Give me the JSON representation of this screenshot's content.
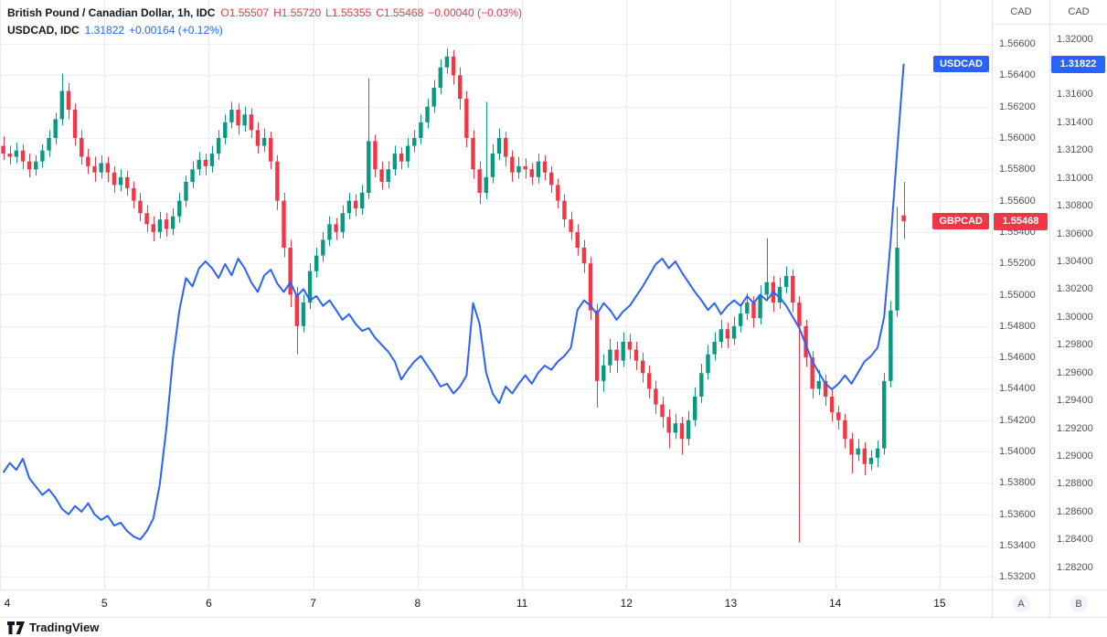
{
  "legend": {
    "line1": {
      "title": "British Pound / Canadian Dollar, 1h, IDC",
      "o": "O1.55507",
      "h": "H1.55720",
      "l": "L1.55355",
      "c": "C1.55468",
      "change": "−0.00040 (−0.03%)"
    },
    "line2": {
      "title": "USDCAD, IDC",
      "value": "1.31822",
      "change": "+0.00164 (+0.12%)"
    }
  },
  "scale_buttons": {
    "a": "A",
    "b": "B"
  },
  "footer": {
    "brand": "TradingView"
  },
  "chart_data": {
    "type": "candlestick+line",
    "timeframe": "1h",
    "x_axis": {
      "slots": 152,
      "labels": [
        [
          "4",
          0
        ],
        [
          "5",
          16
        ],
        [
          "6",
          32
        ],
        [
          "7",
          48
        ],
        [
          "8",
          64
        ],
        [
          "11",
          80
        ],
        [
          "12",
          96
        ],
        [
          "13",
          112
        ],
        [
          "14",
          128
        ],
        [
          "15",
          144
        ]
      ]
    },
    "gbp_axis": {
      "currency": "CAD",
      "min": 1.5312,
      "max": 1.5688,
      "last_price": "1.55468",
      "ticks": [
        "1.56600",
        "1.56400",
        "1.56200",
        "1.56000",
        "1.55800",
        "1.55600",
        "1.55400",
        "1.55200",
        "1.55000",
        "1.54800",
        "1.54600",
        "1.54400",
        "1.54200",
        "1.54000",
        "1.53800",
        "1.53600",
        "1.53400",
        "1.53200"
      ]
    },
    "usd_axis": {
      "currency": "CAD",
      "min": 1.2804,
      "max": 1.3228,
      "last_price": "1.31822",
      "ticks": [
        "1.32000",
        "1.31800",
        "1.31600",
        "1.31400",
        "1.31200",
        "1.31000",
        "1.30800",
        "1.30600",
        "1.30400",
        "1.30200",
        "1.30000",
        "1.29800",
        "1.29600",
        "1.29400",
        "1.29200",
        "1.29000",
        "1.28800",
        "1.28600",
        "1.28400",
        "1.28200"
      ]
    },
    "colors": {
      "up": "#089981",
      "down": "#f23645",
      "line": "#2962ff",
      "gbp_label_bg": "#f23645",
      "usd_label_bg": "#2962ff",
      "grid": "#eef0f4",
      "session_line": "#e7eaef"
    },
    "series": [
      {
        "name": "GBPCAD",
        "type": "candles",
        "candles": [
          [
            1.5595,
            1.5601,
            1.5586,
            1.559
          ],
          [
            1.559,
            1.5595,
            1.5583,
            1.5588
          ],
          [
            1.5588,
            1.5597,
            1.5584,
            1.5592
          ],
          [
            1.5592,
            1.5596,
            1.558,
            1.5585
          ],
          [
            1.5585,
            1.559,
            1.5575,
            1.558
          ],
          [
            1.558,
            1.5589,
            1.5576,
            1.5585
          ],
          [
            1.5585,
            1.5596,
            1.5581,
            1.5592
          ],
          [
            1.5592,
            1.5605,
            1.5588,
            1.56
          ],
          [
            1.56,
            1.5616,
            1.5596,
            1.5612
          ],
          [
            1.5612,
            1.5641,
            1.5608,
            1.563
          ],
          [
            1.563,
            1.5635,
            1.5612,
            1.5618
          ],
          [
            1.5618,
            1.5622,
            1.5595,
            1.56
          ],
          [
            1.56,
            1.5605,
            1.5583,
            1.5588
          ],
          [
            1.5588,
            1.5593,
            1.5577,
            1.5582
          ],
          [
            1.5582,
            1.5588,
            1.5572,
            1.5578
          ],
          [
            1.5578,
            1.5589,
            1.5574,
            1.5584
          ],
          [
            1.5584,
            1.5588,
            1.5572,
            1.5578
          ],
          [
            1.5578,
            1.5582,
            1.5565,
            1.557
          ],
          [
            1.557,
            1.558,
            1.5566,
            1.5575
          ],
          [
            1.5575,
            1.5579,
            1.5563,
            1.5568
          ],
          [
            1.5568,
            1.5572,
            1.5555,
            1.556
          ],
          [
            1.556,
            1.5565,
            1.5547,
            1.5552
          ],
          [
            1.5552,
            1.5557,
            1.554,
            1.5545
          ],
          [
            1.5545,
            1.555,
            1.5534,
            1.554
          ],
          [
            1.554,
            1.5553,
            1.5536,
            1.5548
          ],
          [
            1.5548,
            1.5552,
            1.5537,
            1.5542
          ],
          [
            1.5542,
            1.5555,
            1.5538,
            1.555
          ],
          [
            1.555,
            1.5565,
            1.5546,
            1.556
          ],
          [
            1.556,
            1.5576,
            1.5556,
            1.5572
          ],
          [
            1.5572,
            1.5585,
            1.5568,
            1.558
          ],
          [
            1.558,
            1.5591,
            1.5576,
            1.5586
          ],
          [
            1.5586,
            1.559,
            1.5576,
            1.5582
          ],
          [
            1.5582,
            1.5595,
            1.5578,
            1.559
          ],
          [
            1.559,
            1.5605,
            1.5586,
            1.56
          ],
          [
            1.56,
            1.5615,
            1.5596,
            1.561
          ],
          [
            1.561,
            1.5623,
            1.5606,
            1.5618
          ],
          [
            1.5618,
            1.5622,
            1.5602,
            1.5608
          ],
          [
            1.5608,
            1.562,
            1.5604,
            1.5615
          ],
          [
            1.5615,
            1.5619,
            1.56,
            1.5605
          ],
          [
            1.5605,
            1.561,
            1.559,
            1.5595
          ],
          [
            1.5595,
            1.5606,
            1.5591,
            1.56
          ],
          [
            1.56,
            1.5604,
            1.558,
            1.5585
          ],
          [
            1.5585,
            1.5589,
            1.5554,
            1.556
          ],
          [
            1.556,
            1.5565,
            1.5524,
            1.553
          ],
          [
            1.553,
            1.5535,
            1.5492,
            1.55
          ],
          [
            1.55,
            1.5505,
            1.5462,
            1.548
          ],
          [
            1.548,
            1.55,
            1.5476,
            1.5495
          ],
          [
            1.5495,
            1.552,
            1.5491,
            1.5515
          ],
          [
            1.5515,
            1.553,
            1.5511,
            1.5525
          ],
          [
            1.5525,
            1.554,
            1.5521,
            1.5535
          ],
          [
            1.5535,
            1.555,
            1.5531,
            1.5545
          ],
          [
            1.5545,
            1.5549,
            1.5535,
            1.554
          ],
          [
            1.554,
            1.5557,
            1.5536,
            1.5552
          ],
          [
            1.5552,
            1.5565,
            1.5548,
            1.556
          ],
          [
            1.556,
            1.5564,
            1.555,
            1.5555
          ],
          [
            1.5555,
            1.557,
            1.5551,
            1.5565
          ],
          [
            1.5565,
            1.5638,
            1.5561,
            1.5598
          ],
          [
            1.5598,
            1.5602,
            1.5575,
            1.558
          ],
          [
            1.558,
            1.5585,
            1.5567,
            1.5572
          ],
          [
            1.5572,
            1.5585,
            1.5568,
            1.558
          ],
          [
            1.558,
            1.5595,
            1.5576,
            1.559
          ],
          [
            1.559,
            1.5594,
            1.558,
            1.5585
          ],
          [
            1.5585,
            1.56,
            1.5581,
            1.5595
          ],
          [
            1.5595,
            1.5605,
            1.5591,
            1.56
          ],
          [
            1.56,
            1.5615,
            1.5596,
            1.561
          ],
          [
            1.561,
            1.5625,
            1.5606,
            1.562
          ],
          [
            1.562,
            1.5637,
            1.5616,
            1.5632
          ],
          [
            1.5632,
            1.565,
            1.5628,
            1.5645
          ],
          [
            1.5645,
            1.5657,
            1.5641,
            1.5652
          ],
          [
            1.5652,
            1.5656,
            1.5634,
            1.564
          ],
          [
            1.564,
            1.5645,
            1.5618,
            1.5625
          ],
          [
            1.5625,
            1.563,
            1.5594,
            1.56
          ],
          [
            1.56,
            1.5605,
            1.5574,
            1.558
          ],
          [
            1.558,
            1.5585,
            1.5558,
            1.5565
          ],
          [
            1.5565,
            1.5623,
            1.5561,
            1.5575
          ],
          [
            1.5575,
            1.5596,
            1.5571,
            1.559
          ],
          [
            1.559,
            1.5606,
            1.5586,
            1.56
          ],
          [
            1.56,
            1.5604,
            1.5582,
            1.5588
          ],
          [
            1.5588,
            1.5592,
            1.5572,
            1.5578
          ],
          [
            1.5578,
            1.5588,
            1.5574,
            1.5582
          ],
          [
            1.5582,
            1.5587,
            1.5574,
            1.558
          ],
          [
            1.558,
            1.5584,
            1.557,
            1.5575
          ],
          [
            1.5575,
            1.559,
            1.5571,
            1.5585
          ],
          [
            1.5585,
            1.5589,
            1.5573,
            1.5578
          ],
          [
            1.5578,
            1.5582,
            1.5565,
            1.557
          ],
          [
            1.557,
            1.5574,
            1.5555,
            1.556
          ],
          [
            1.556,
            1.5564,
            1.5543,
            1.5548
          ],
          [
            1.5548,
            1.5553,
            1.5535,
            1.554
          ],
          [
            1.554,
            1.5545,
            1.5525,
            1.553
          ],
          [
            1.553,
            1.5535,
            1.5514,
            1.552
          ],
          [
            1.552,
            1.5524,
            1.5484,
            1.549
          ],
          [
            1.549,
            1.5494,
            1.5428,
            1.5445
          ],
          [
            1.5445,
            1.5462,
            1.5438,
            1.5455
          ],
          [
            1.5455,
            1.5472,
            1.545,
            1.5465
          ],
          [
            1.5465,
            1.547,
            1.545,
            1.5458
          ],
          [
            1.5458,
            1.5476,
            1.5454,
            1.547
          ],
          [
            1.547,
            1.5475,
            1.5459,
            1.5465
          ],
          [
            1.5465,
            1.547,
            1.5452,
            1.5458
          ],
          [
            1.5458,
            1.5463,
            1.5444,
            1.545
          ],
          [
            1.545,
            1.5455,
            1.5434,
            1.544
          ],
          [
            1.544,
            1.5445,
            1.5424,
            1.543
          ],
          [
            1.543,
            1.5435,
            1.5415,
            1.5422
          ],
          [
            1.5422,
            1.5427,
            1.5402,
            1.5412
          ],
          [
            1.5412,
            1.5424,
            1.5408,
            1.5418
          ],
          [
            1.5418,
            1.5422,
            1.5398,
            1.5408
          ],
          [
            1.5408,
            1.5426,
            1.5404,
            1.542
          ],
          [
            1.542,
            1.5441,
            1.5416,
            1.5435
          ],
          [
            1.5435,
            1.5456,
            1.5431,
            1.545
          ],
          [
            1.545,
            1.5468,
            1.5446,
            1.5462
          ],
          [
            1.5462,
            1.5476,
            1.5458,
            1.547
          ],
          [
            1.547,
            1.5484,
            1.5466,
            1.5478
          ],
          [
            1.5478,
            1.5482,
            1.5466,
            1.5472
          ],
          [
            1.5472,
            1.5486,
            1.5468,
            1.548
          ],
          [
            1.548,
            1.5494,
            1.5476,
            1.5488
          ],
          [
            1.5488,
            1.5501,
            1.5484,
            1.5495
          ],
          [
            1.5495,
            1.5499,
            1.5479,
            1.5485
          ],
          [
            1.5485,
            1.5506,
            1.5481,
            1.55
          ],
          [
            1.55,
            1.5536,
            1.5496,
            1.5508
          ],
          [
            1.5508,
            1.5512,
            1.5489,
            1.5495
          ],
          [
            1.5495,
            1.5511,
            1.5491,
            1.5505
          ],
          [
            1.5505,
            1.5518,
            1.5501,
            1.5512
          ],
          [
            1.5512,
            1.5516,
            1.5489,
            1.5495
          ],
          [
            1.5495,
            1.5499,
            1.5342,
            1.548
          ],
          [
            1.548,
            1.5484,
            1.5454,
            1.546
          ],
          [
            1.546,
            1.5464,
            1.5434,
            1.544
          ],
          [
            1.544,
            1.5452,
            1.5436,
            1.5445
          ],
          [
            1.5445,
            1.5449,
            1.5429,
            1.5435
          ],
          [
            1.5435,
            1.544,
            1.5419,
            1.5425
          ],
          [
            1.5425,
            1.5429,
            1.5414,
            1.542
          ],
          [
            1.542,
            1.5424,
            1.5402,
            1.5408
          ],
          [
            1.5408,
            1.5412,
            1.5386,
            1.5398
          ],
          [
            1.5398,
            1.5408,
            1.5394,
            1.5402
          ],
          [
            1.5402,
            1.5406,
            1.5385,
            1.5392
          ],
          [
            1.5392,
            1.5401,
            1.5388,
            1.5396
          ],
          [
            1.5396,
            1.5407,
            1.539,
            1.5402
          ],
          [
            1.5402,
            1.545,
            1.5398,
            1.5445
          ],
          [
            1.5445,
            1.5496,
            1.5441,
            1.549
          ],
          [
            1.549,
            1.5556,
            1.5486,
            1.553
          ],
          [
            1.55507,
            1.5572,
            1.55355,
            1.55468
          ]
        ]
      },
      {
        "name": "USDCAD",
        "type": "line",
        "values": [
          1.2888,
          1.2895,
          1.289,
          1.2898,
          1.2884,
          1.2878,
          1.2872,
          1.2876,
          1.287,
          1.2862,
          1.2858,
          1.2864,
          1.286,
          1.2866,
          1.2858,
          1.2854,
          1.2857,
          1.285,
          1.2852,
          1.2846,
          1.2842,
          1.284,
          1.2846,
          1.2855,
          1.288,
          1.292,
          1.297,
          1.3005,
          1.3028,
          1.3022,
          1.3035,
          1.304,
          1.3035,
          1.3028,
          1.3038,
          1.303,
          1.3042,
          1.3035,
          1.3025,
          1.3018,
          1.303,
          1.3034,
          1.3024,
          1.3018,
          1.3025,
          1.3015,
          1.302,
          1.3012,
          1.3015,
          1.3008,
          1.3012,
          1.3005,
          1.2998,
          1.3002,
          1.2995,
          1.299,
          1.2992,
          1.2985,
          1.298,
          1.2975,
          1.2968,
          1.2955,
          1.2962,
          1.2968,
          1.2972,
          1.2965,
          1.2958,
          1.295,
          1.2952,
          1.2945,
          1.295,
          1.2958,
          1.301,
          1.2995,
          1.296,
          1.2945,
          1.2938,
          1.295,
          1.2945,
          1.2952,
          1.2958,
          1.2952,
          1.296,
          1.2965,
          1.2962,
          1.2968,
          1.2972,
          1.2978,
          1.3005,
          1.3012,
          1.3008,
          1.3002,
          1.301,
          1.3005,
          1.2998,
          1.3004,
          1.3008,
          1.3015,
          1.3022,
          1.303,
          1.3038,
          1.3042,
          1.3035,
          1.304,
          1.3032,
          1.3025,
          1.3018,
          1.3012,
          1.3005,
          1.301,
          1.3002,
          1.3008,
          1.3012,
          1.3008,
          1.3015,
          1.301,
          1.3016,
          1.3012,
          1.3018,
          1.3014,
          1.3008,
          1.3,
          1.2992,
          1.298,
          1.2968,
          1.296,
          1.2952,
          1.2948,
          1.2952,
          1.2958,
          1.2952,
          1.296,
          1.2968,
          1.2972,
          1.2978,
          1.3,
          1.3055,
          1.312,
          1.31822
        ]
      }
    ]
  }
}
